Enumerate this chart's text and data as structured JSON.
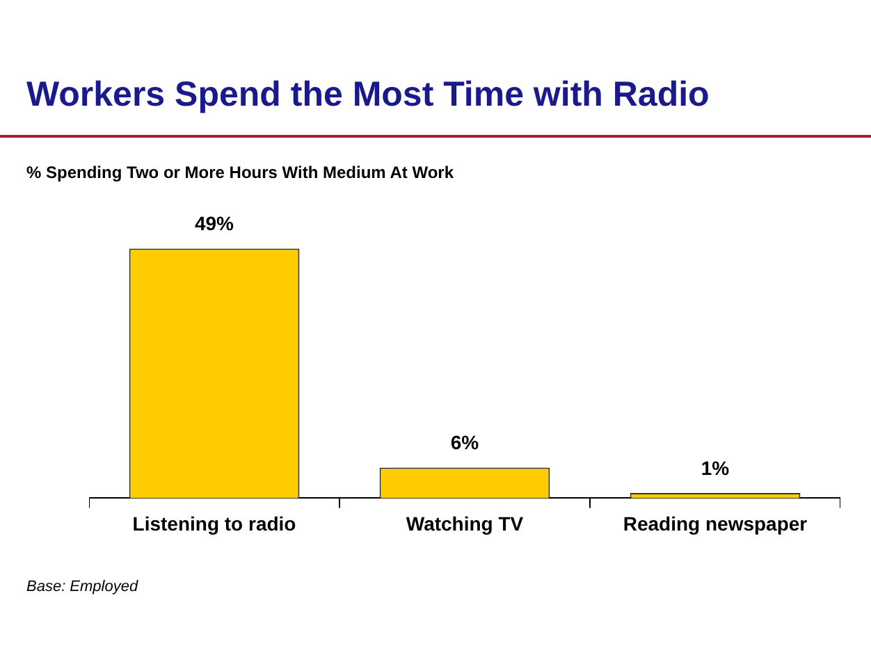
{
  "chart_data": {
    "type": "bar",
    "title": "Workers Spend the Most Time with Radio",
    "subtitle": "% Spending Two or More Hours With Medium At Work",
    "categories": [
      "Listening to radio",
      "Watching TV",
      "Reading newspaper"
    ],
    "values": [
      49,
      6,
      1
    ],
    "color": "#ffcc00",
    "data_labels": true,
    "value_labels": [
      "49%",
      "6%",
      "1%"
    ],
    "annotations": [
      "Base: Employed"
    ]
  }
}
